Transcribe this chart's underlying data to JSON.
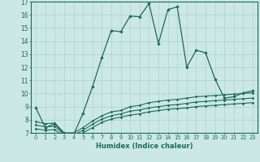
{
  "xlabel": "Humidex (Indice chaleur)",
  "background_color": "#cce8e4",
  "grid_color": "#aad4cc",
  "line_color": "#1a6b5a",
  "xlim": [
    -0.5,
    23.5
  ],
  "ylim": [
    7,
    17
  ],
  "xticks": [
    0,
    1,
    2,
    3,
    4,
    5,
    6,
    7,
    8,
    9,
    10,
    11,
    12,
    13,
    14,
    15,
    16,
    17,
    18,
    19,
    20,
    21,
    22,
    23
  ],
  "yticks": [
    7,
    8,
    9,
    10,
    11,
    12,
    13,
    14,
    15,
    16,
    17
  ],
  "series1_x": [
    0,
    1,
    2,
    3,
    4,
    5,
    6,
    7,
    8,
    9,
    10,
    11,
    12,
    13,
    14,
    15,
    16,
    17,
    18,
    19,
    20,
    21,
    22,
    23
  ],
  "series1_y": [
    8.9,
    7.4,
    7.7,
    6.9,
    6.85,
    8.5,
    10.5,
    12.75,
    14.8,
    14.7,
    15.9,
    15.85,
    16.85,
    13.8,
    16.4,
    16.6,
    12.0,
    13.3,
    13.1,
    11.1,
    9.65,
    9.75,
    10.05,
    10.2
  ],
  "series2_x": [
    0,
    1,
    2,
    3,
    4,
    5,
    6,
    7,
    8,
    9,
    10,
    11,
    12,
    13,
    14,
    15,
    16,
    17,
    18,
    19,
    20,
    21,
    22,
    23
  ],
  "series2_y": [
    7.85,
    7.7,
    7.75,
    7.0,
    7.0,
    7.4,
    7.9,
    8.3,
    8.6,
    8.7,
    9.0,
    9.1,
    9.3,
    9.4,
    9.5,
    9.55,
    9.65,
    9.75,
    9.8,
    9.85,
    9.9,
    9.95,
    10.0,
    10.05
  ],
  "series3_x": [
    0,
    1,
    2,
    3,
    4,
    5,
    6,
    7,
    8,
    9,
    10,
    11,
    12,
    13,
    14,
    15,
    16,
    17,
    18,
    19,
    20,
    21,
    22,
    23
  ],
  "series3_y": [
    7.6,
    7.45,
    7.5,
    6.85,
    6.85,
    7.2,
    7.65,
    8.05,
    8.3,
    8.45,
    8.65,
    8.75,
    8.9,
    9.0,
    9.1,
    9.15,
    9.25,
    9.35,
    9.4,
    9.45,
    9.5,
    9.55,
    9.6,
    9.65
  ],
  "series4_x": [
    0,
    1,
    2,
    3,
    4,
    5,
    6,
    7,
    8,
    9,
    10,
    11,
    12,
    13,
    14,
    15,
    16,
    17,
    18,
    19,
    20,
    21,
    22,
    23
  ],
  "series4_y": [
    7.3,
    7.2,
    7.25,
    6.7,
    6.7,
    7.0,
    7.4,
    7.8,
    8.05,
    8.2,
    8.35,
    8.45,
    8.6,
    8.7,
    8.8,
    8.85,
    8.9,
    9.0,
    9.05,
    9.1,
    9.15,
    9.2,
    9.25,
    9.3
  ]
}
